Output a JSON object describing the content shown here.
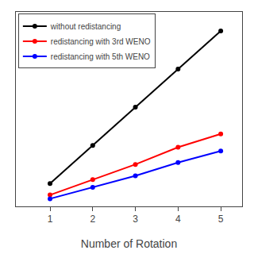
{
  "chart_data": {
    "type": "line",
    "xlabel": "Number of Rotation",
    "x": [
      1.0,
      2.0,
      3.0,
      4.0,
      5.0
    ],
    "series": [
      {
        "name": "without redistancing",
        "color": "black",
        "values": [
          0.1,
          0.3,
          0.5,
          0.7,
          0.9
        ]
      },
      {
        "name": "redistancing with 3rd WENO",
        "color": "red",
        "values": [
          0.04,
          0.12,
          0.2,
          0.29,
          0.36
        ]
      },
      {
        "name": "redistancing with 5th WENO",
        "color": "blue",
        "values": [
          0.02,
          0.08,
          0.14,
          0.21,
          0.27
        ]
      }
    ],
    "xlim": [
      0.2,
      5.5
    ],
    "xticks": [
      1,
      2,
      3,
      4,
      5
    ],
    "ylim": [
      -0.02,
      1.0
    ],
    "tick_labels": "x",
    "grid": false,
    "legend": "upper left",
    "marker": "circle"
  }
}
